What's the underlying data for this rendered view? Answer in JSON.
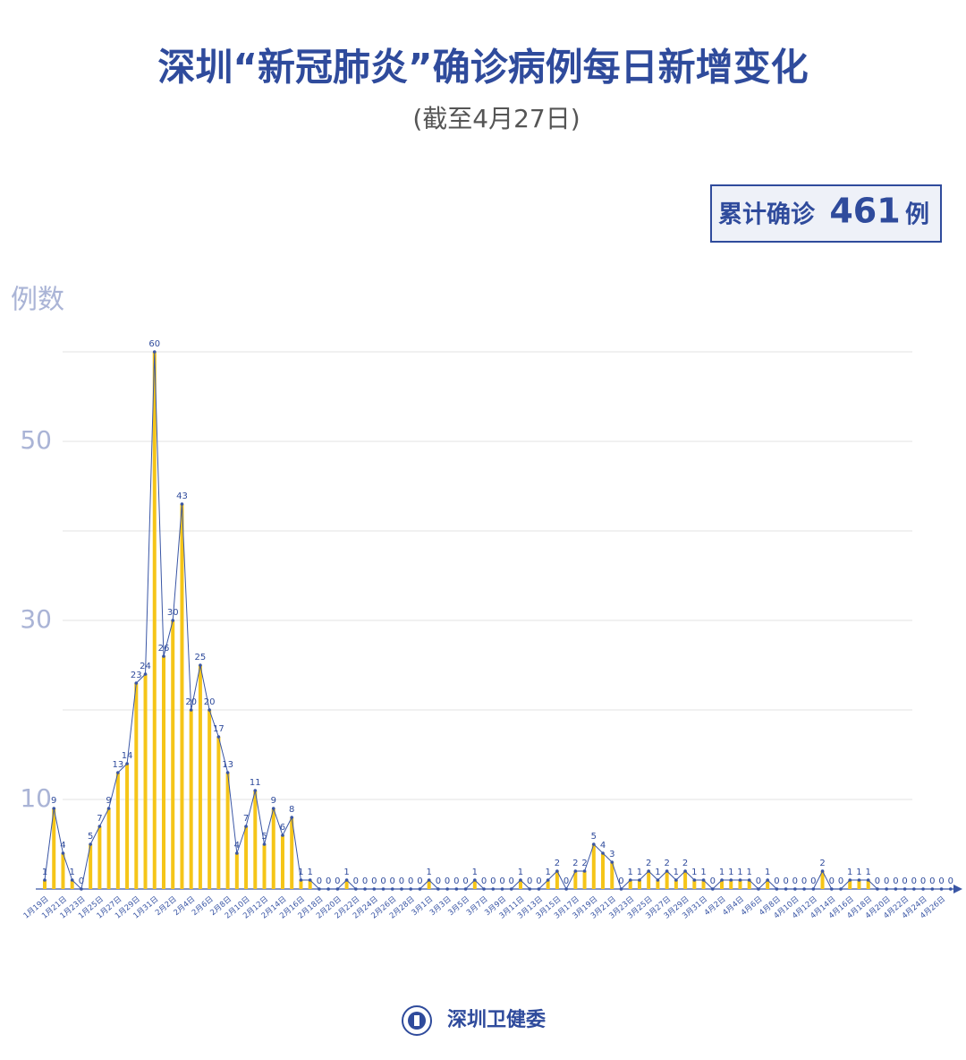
{
  "chart_data": {
    "type": "bar-line",
    "title": "深圳“新冠肺炎”确诊病例每日新增变化",
    "subtitle": "(截至4月27日)",
    "total_prefix": "累计确诊",
    "total": 461,
    "total_suffix": "例",
    "y_label": "例数",
    "footer": "深圳卫健委",
    "categories": [
      "1月19日",
      null,
      "1月21日",
      null,
      "1月23日",
      null,
      "1月25日",
      null,
      "1月27日",
      null,
      "1月29日",
      null,
      "1月31日",
      null,
      "2月2日",
      null,
      "2月4日",
      null,
      "2月6日",
      null,
      "2月8日",
      null,
      "2月10日",
      null,
      "2月12日",
      null,
      "2月14日",
      null,
      "2月16日",
      null,
      "2月18日",
      null,
      "2月20日",
      null,
      "2月22日",
      null,
      "2月24日",
      null,
      "2月26日",
      null,
      "2月28日",
      null,
      "3月1日",
      null,
      "3月3日",
      null,
      "3月5日",
      null,
      "3月7日",
      null,
      "3月9日",
      null,
      "3月11日",
      null,
      "3月13日",
      null,
      "3月15日",
      null,
      "3月17日",
      null,
      "3月19日",
      null,
      "3月21日",
      null,
      "3月23日",
      null,
      "3月25日",
      null,
      "3月27日",
      null,
      "3月29日",
      null,
      "3月31日",
      null,
      "4月2日",
      null,
      "4月4日",
      null,
      "4月6日",
      null,
      "4月8日",
      null,
      "4月10日",
      null,
      "4月12日",
      null,
      "4月14日",
      null,
      "4月16日",
      null,
      "4月18日",
      null,
      "4月20日",
      null,
      "4月22日",
      null,
      "4月24日",
      null,
      "4月26日",
      null
    ],
    "values": [
      1,
      9,
      4,
      1,
      0,
      5,
      7,
      9,
      13,
      14,
      23,
      24,
      60,
      26,
      30,
      43,
      20,
      25,
      20,
      17,
      13,
      4,
      7,
      11,
      5,
      9,
      6,
      8,
      1,
      1,
      0,
      0,
      0,
      1,
      0,
      0,
      0,
      0,
      0,
      0,
      0,
      0,
      1,
      0,
      0,
      0,
      0,
      1,
      0,
      0,
      0,
      0,
      1,
      0,
      0,
      1,
      2,
      0,
      2,
      2,
      5,
      4,
      3,
      0,
      1,
      1,
      2,
      1,
      2,
      1,
      2,
      1,
      1,
      0,
      1,
      1,
      1,
      1,
      0,
      1,
      0,
      0,
      0,
      0,
      0,
      2,
      0,
      0,
      1,
      1,
      1,
      0,
      0,
      0,
      0,
      0,
      0,
      0,
      0,
      0
    ],
    "bar_color": "#f5c518",
    "line_color": "#3a56a5",
    "ylim": [
      0,
      60
    ],
    "yticks": [
      10,
      30,
      50
    ],
    "ygrid": [
      10,
      20,
      30,
      40,
      50,
      60
    ]
  }
}
